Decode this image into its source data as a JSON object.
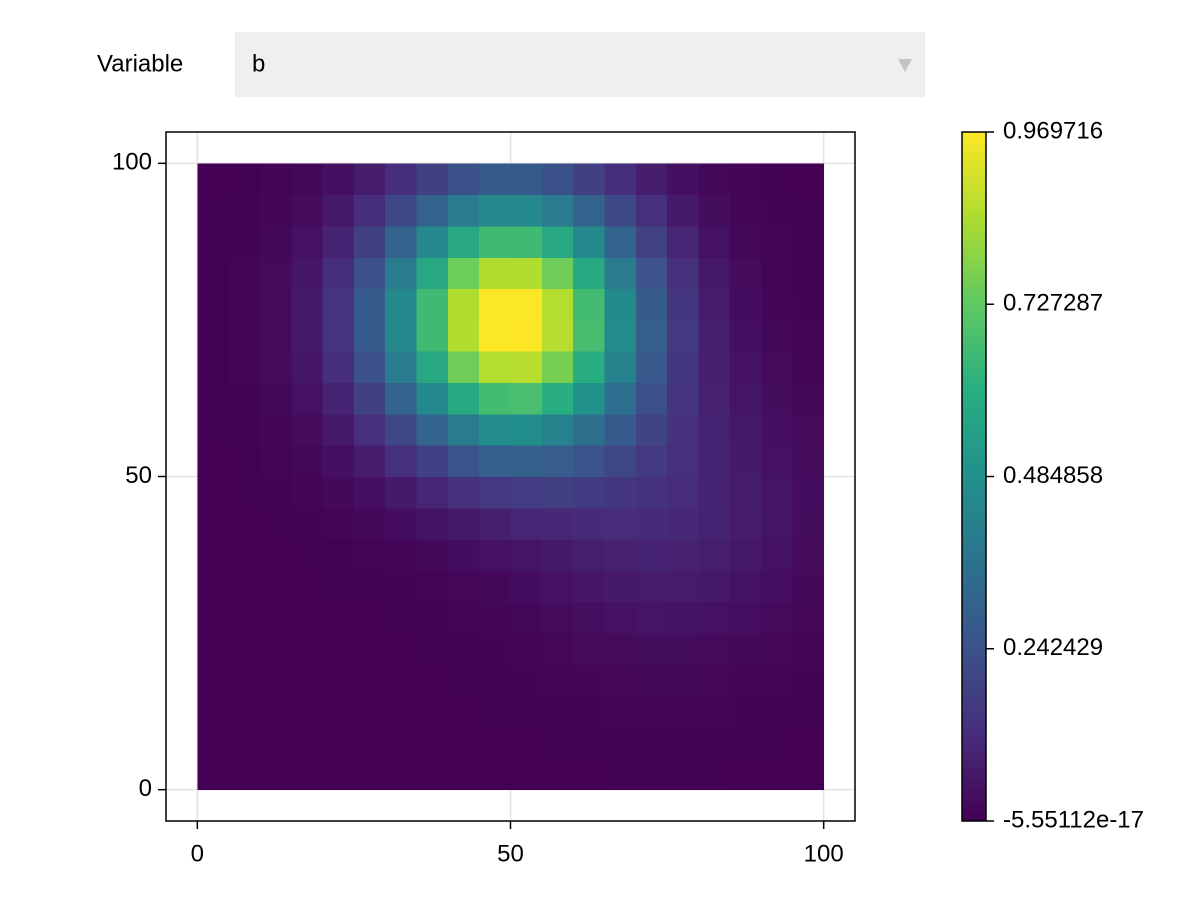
{
  "controls": {
    "label": "Variable",
    "selected": "b"
  },
  "chart_data": {
    "type": "heatmap",
    "colormap": "viridis",
    "x": [
      2.5,
      7.5,
      12.5,
      17.5,
      22.5,
      27.5,
      32.5,
      37.5,
      42.5,
      47.5,
      52.5,
      57.5,
      62.5,
      67.5,
      72.5,
      77.5,
      82.5,
      87.5,
      92.5,
      97.5
    ],
    "y": [
      2.5,
      7.5,
      12.5,
      17.5,
      22.5,
      27.5,
      32.5,
      37.5,
      42.5,
      47.5,
      52.5,
      57.5,
      62.5,
      67.5,
      72.5,
      77.5,
      82.5,
      87.5,
      92.5,
      97.5
    ],
    "z": [
      [
        0,
        0,
        0,
        0,
        0,
        0,
        0,
        0,
        0,
        0,
        0.001,
        0.001,
        0.001,
        0.002,
        0.002,
        0.002,
        0.002,
        0.001,
        0.001,
        0.001
      ],
      [
        0,
        0,
        0,
        0,
        0,
        0,
        0,
        0,
        0,
        0.001,
        0.001,
        0.002,
        0.003,
        0.004,
        0.004,
        0.004,
        0.004,
        0.003,
        0.002,
        0.001
      ],
      [
        0,
        0,
        0,
        0,
        0,
        0,
        0,
        0,
        0.001,
        0.002,
        0.003,
        0.005,
        0.007,
        0.008,
        0.009,
        0.009,
        0.008,
        0.007,
        0.005,
        0.003
      ],
      [
        0,
        0,
        0,
        0,
        0,
        0,
        0,
        0.001,
        0.002,
        0.004,
        0.006,
        0.009,
        0.013,
        0.016,
        0.018,
        0.018,
        0.016,
        0.013,
        0.009,
        0.006
      ],
      [
        0,
        0,
        0,
        0,
        0,
        0,
        0.001,
        0.002,
        0.004,
        0.007,
        0.012,
        0.017,
        0.024,
        0.029,
        0.032,
        0.032,
        0.029,
        0.023,
        0.016,
        0.011
      ],
      [
        0,
        0,
        0,
        0,
        0.001,
        0.001,
        0.002,
        0.004,
        0.008,
        0.013,
        0.02,
        0.028,
        0.038,
        0.046,
        0.051,
        0.05,
        0.045,
        0.036,
        0.026,
        0.016
      ],
      [
        0,
        0,
        0,
        0.001,
        0.002,
        0.003,
        0.006,
        0.01,
        0.016,
        0.023,
        0.033,
        0.045,
        0.057,
        0.067,
        0.073,
        0.071,
        0.063,
        0.05,
        0.036,
        0.023
      ],
      [
        0,
        0,
        0.001,
        0.002,
        0.004,
        0.008,
        0.014,
        0.023,
        0.033,
        0.044,
        0.056,
        0.069,
        0.081,
        0.091,
        0.095,
        0.091,
        0.08,
        0.063,
        0.045,
        0.029
      ],
      [
        0,
        0.001,
        0.002,
        0.005,
        0.01,
        0.019,
        0.033,
        0.05,
        0.068,
        0.085,
        0.099,
        0.108,
        0.115,
        0.118,
        0.116,
        0.107,
        0.092,
        0.072,
        0.051,
        0.032
      ],
      [
        0.001,
        0.002,
        0.004,
        0.01,
        0.021,
        0.041,
        0.068,
        0.102,
        0.135,
        0.161,
        0.175,
        0.176,
        0.167,
        0.153,
        0.137,
        0.118,
        0.097,
        0.074,
        0.051,
        0.033
      ],
      [
        0.001,
        0.003,
        0.008,
        0.019,
        0.04,
        0.076,
        0.128,
        0.188,
        0.247,
        0.287,
        0.299,
        0.283,
        0.247,
        0.204,
        0.163,
        0.127,
        0.096,
        0.07,
        0.047,
        0.03
      ],
      [
        0.002,
        0.005,
        0.013,
        0.031,
        0.067,
        0.127,
        0.211,
        0.31,
        0.403,
        0.464,
        0.474,
        0.432,
        0.357,
        0.272,
        0.196,
        0.136,
        0.093,
        0.063,
        0.04,
        0.025
      ],
      [
        0.002,
        0.007,
        0.019,
        0.045,
        0.097,
        0.185,
        0.308,
        0.452,
        0.586,
        0.67,
        0.677,
        0.607,
        0.486,
        0.352,
        0.234,
        0.147,
        0.09,
        0.054,
        0.032,
        0.019
      ],
      [
        0.003,
        0.009,
        0.024,
        0.059,
        0.126,
        0.238,
        0.397,
        0.583,
        0.753,
        0.858,
        0.863,
        0.766,
        0.604,
        0.425,
        0.27,
        0.158,
        0.087,
        0.047,
        0.025,
        0.013
      ],
      [
        0.003,
        0.01,
        0.027,
        0.067,
        0.143,
        0.271,
        0.451,
        0.661,
        0.854,
        0.968,
        0.969,
        0.862,
        0.674,
        0.467,
        0.289,
        0.161,
        0.083,
        0.041,
        0.019,
        0.009
      ],
      [
        0.003,
        0.01,
        0.027,
        0.067,
        0.143,
        0.271,
        0.451,
        0.661,
        0.853,
        0.966,
        0.967,
        0.857,
        0.667,
        0.459,
        0.28,
        0.152,
        0.075,
        0.034,
        0.015,
        0.006
      ],
      [
        0.003,
        0.009,
        0.024,
        0.059,
        0.126,
        0.238,
        0.397,
        0.581,
        0.75,
        0.853,
        0.854,
        0.752,
        0.584,
        0.4,
        0.242,
        0.13,
        0.062,
        0.027,
        0.011,
        0.004
      ],
      [
        0.002,
        0.007,
        0.019,
        0.045,
        0.097,
        0.185,
        0.307,
        0.45,
        0.581,
        0.66,
        0.661,
        0.582,
        0.452,
        0.309,
        0.186,
        0.099,
        0.047,
        0.02,
        0.008,
        0.003
      ],
      [
        0.002,
        0.005,
        0.013,
        0.031,
        0.066,
        0.126,
        0.21,
        0.307,
        0.397,
        0.451,
        0.451,
        0.397,
        0.308,
        0.21,
        0.127,
        0.067,
        0.032,
        0.013,
        0.005,
        0.002
      ],
      [
        0.001,
        0.003,
        0.008,
        0.019,
        0.04,
        0.076,
        0.126,
        0.185,
        0.238,
        0.271,
        0.271,
        0.238,
        0.185,
        0.126,
        0.076,
        0.04,
        0.019,
        0.008,
        0.003,
        0.001
      ]
    ],
    "xlim": [
      -5,
      105
    ],
    "ylim": [
      -5,
      105
    ],
    "xticks": [
      0,
      50,
      100
    ],
    "yticks": [
      0,
      50,
      100
    ],
    "grid": true,
    "clim": [
      -5.55112e-17,
      0.969716
    ],
    "cticks": [
      -5.55112e-17,
      0.242429,
      0.484858,
      0.727287,
      0.969716
    ]
  }
}
